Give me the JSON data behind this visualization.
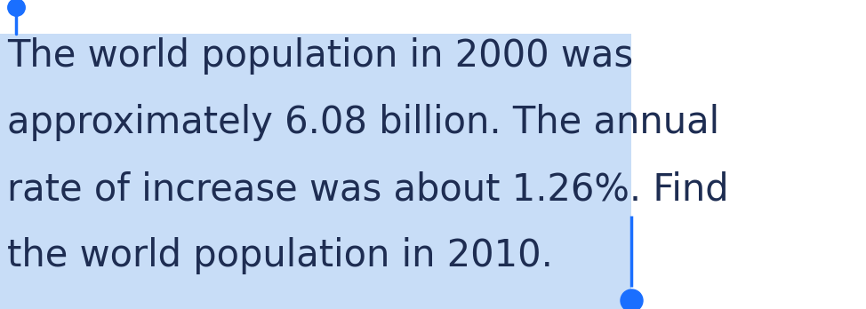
{
  "text_lines": [
    "The world population in 2000 was",
    "approximately 6.08 billion. The annual",
    "rate of increase was about 1.26%. Find",
    "the world population in 2010."
  ],
  "background_color": "#c8ddf7",
  "text_color": "#1e2d52",
  "font_size": 30,
  "fig_width": 9.74,
  "fig_height": 3.48,
  "dpi": 100,
  "handle_color": "#1a6fff",
  "white_bg": "#ffffff"
}
